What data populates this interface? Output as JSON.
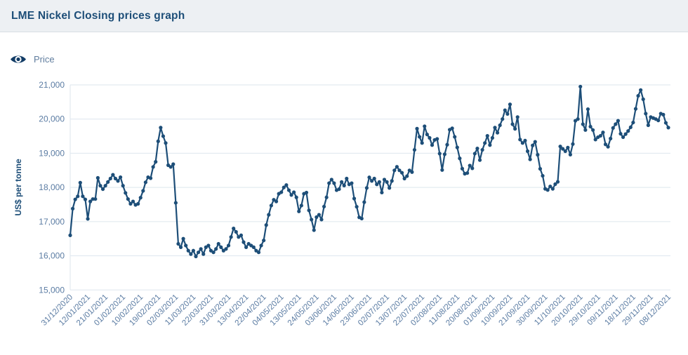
{
  "header": {
    "title": "LME Nickel Closing prices graph"
  },
  "legend": {
    "label": "Price"
  },
  "colors": {
    "accent": "#1d4e78",
    "header_background": "#edf0f3",
    "header_border": "#d8dee4",
    "grid_line": "#dde6ee",
    "tick_label": "#5b7ca3",
    "legend_label": "#607d9e"
  },
  "chart_data": {
    "type": "line",
    "title": "LME Nickel Closing prices graph",
    "xlabel": "",
    "ylabel": "US$ per tonne",
    "ylim": [
      15000,
      21000
    ],
    "y_tick_step": 1000,
    "grid": true,
    "legend_position": "top-left",
    "x_tick_interval": 7,
    "x_tick_labels": [
      "31/12/2020",
      "12/01/2021",
      "21/01/2021",
      "01/02/2021",
      "10/02/2021",
      "19/02/2021",
      "02/03/2021",
      "11/03/2021",
      "22/03/2021",
      "31/03/2021",
      "13/04/2021",
      "22/04/2021",
      "04/05/2021",
      "13/05/2021",
      "24/05/2021",
      "03/06/2021",
      "14/06/2021",
      "23/06/2021",
      "02/07/2021",
      "13/07/2021",
      "22/07/2021",
      "02/08/2021",
      "11/08/2021",
      "20/08/2021",
      "01/09/2021",
      "10/09/2021",
      "21/09/2021",
      "30/09/2021",
      "11/10/2021",
      "20/10/2021",
      "29/10/2021",
      "09/11/2021",
      "18/11/2021",
      "29/11/2021",
      "08/12/2021"
    ],
    "series": [
      {
        "name": "Price",
        "color": "#1d4e78",
        "values": [
          16600,
          17380,
          17650,
          17740,
          18140,
          17740,
          17650,
          17080,
          17590,
          17660,
          17660,
          18280,
          18050,
          17950,
          18050,
          18160,
          18260,
          18370,
          18260,
          18190,
          18300,
          18050,
          17840,
          17660,
          17520,
          17590,
          17490,
          17520,
          17700,
          17900,
          18150,
          18300,
          18270,
          18600,
          18750,
          19350,
          19750,
          19500,
          19300,
          18650,
          18600,
          18680,
          17550,
          16350,
          16250,
          16500,
          16300,
          16150,
          16050,
          16150,
          15980,
          16100,
          16200,
          16050,
          16250,
          16300,
          16150,
          16100,
          16200,
          16350,
          16250,
          16150,
          16200,
          16300,
          16550,
          16800,
          16700,
          16550,
          16600,
          16400,
          16250,
          16350,
          16300,
          16250,
          16150,
          16100,
          16300,
          16450,
          16900,
          17200,
          17470,
          17640,
          17590,
          17815,
          17860,
          18000,
          18070,
          17920,
          17780,
          17860,
          17710,
          17300,
          17470,
          17815,
          17850,
          17330,
          17060,
          16750,
          17130,
          17200,
          17060,
          17440,
          17710,
          18125,
          18230,
          18125,
          17920,
          17950,
          18160,
          18055,
          18260,
          18090,
          18125,
          17675,
          17435,
          17125,
          17090,
          17570,
          17985,
          18295,
          18190,
          18260,
          18090,
          18160,
          17850,
          18230,
          18160,
          17985,
          18190,
          18500,
          18605,
          18500,
          18430,
          18260,
          18330,
          18500,
          18450,
          19100,
          19720,
          19480,
          19300,
          19790,
          19550,
          19450,
          19240,
          19390,
          19420,
          18990,
          18510,
          18970,
          19250,
          19690,
          19730,
          19480,
          19170,
          18850,
          18550,
          18400,
          18420,
          18640,
          18560,
          18990,
          19140,
          18800,
          19100,
          19300,
          19510,
          19240,
          19450,
          19750,
          19600,
          19820,
          20000,
          20260,
          20150,
          20430,
          19850,
          19715,
          20060,
          19400,
          19300,
          19370,
          19060,
          18820,
          19230,
          19335,
          18955,
          18545,
          18340,
          17960,
          17925,
          18030,
          17960,
          18095,
          18165,
          19200,
          19130,
          19060,
          19165,
          18960,
          19270,
          19950,
          20000,
          20950,
          19850,
          19680,
          20290,
          19780,
          19680,
          19400,
          19470,
          19510,
          19610,
          19260,
          19190,
          19430,
          19740,
          19850,
          19950,
          19570,
          19470,
          19560,
          19650,
          19760,
          19900,
          20300,
          20680,
          20850,
          20580,
          20160,
          19820,
          20060,
          20030,
          20000,
          19960,
          20160,
          20130,
          19890,
          19750
        ]
      }
    ]
  }
}
